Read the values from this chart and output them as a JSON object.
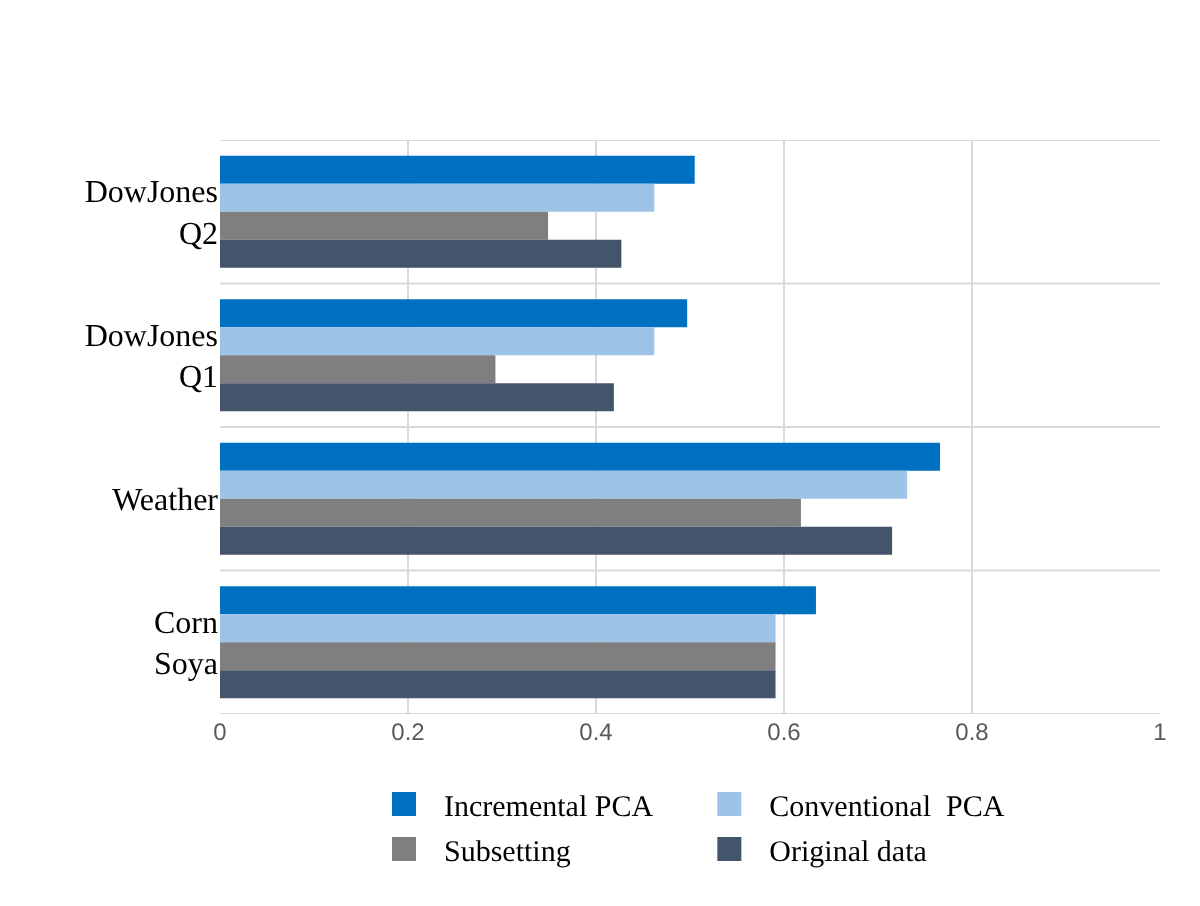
{
  "chart_data": {
    "type": "bar",
    "orientation": "horizontal",
    "categories": [
      "DowJones Q2",
      "DowJones Q1",
      "Weather",
      "Corn Soya"
    ],
    "series": [
      {
        "name": "Incremental PCA",
        "color": "#0070c0",
        "values": [
          0.505,
          0.497,
          0.766,
          0.634
        ]
      },
      {
        "name": "Conventional  PCA",
        "color": "#9dc3e6",
        "values": [
          0.462,
          0.462,
          0.731,
          0.591
        ]
      },
      {
        "name": "Subsetting",
        "color": "#7f7f7f",
        "values": [
          0.349,
          0.293,
          0.618,
          0.591
        ]
      },
      {
        "name": "Original data",
        "color": "#44546a",
        "values": [
          0.427,
          0.419,
          0.715,
          0.591
        ]
      }
    ],
    "xlim": [
      0,
      1
    ],
    "xticks": [
      0,
      0.2,
      0.4,
      0.6,
      0.8,
      1
    ],
    "grid": true,
    "legend": "bottom"
  }
}
